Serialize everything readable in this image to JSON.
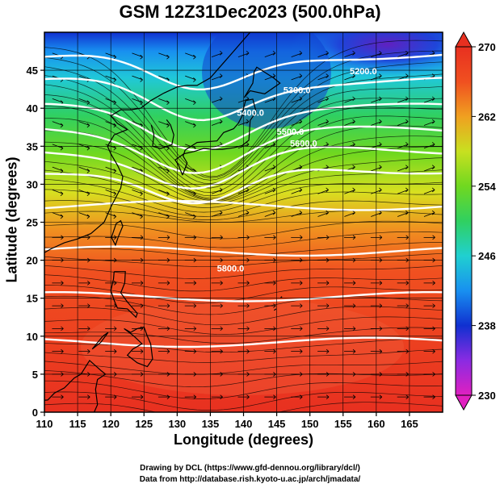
{
  "title": "GSM 12Z31Dec2023 (500.0hPa)",
  "xlabel": "Longitude (degrees)",
  "ylabel": "Latitude  (degrees)",
  "credits": {
    "line1": "Drawing by DCL (https://www.gfd-dennou.org/library/dcl/)",
    "line2": "Data from http://database.rish.kyoto-u.ac.jp/arch/jmadata/"
  },
  "chart_data": {
    "type": "heatmap",
    "x_range": [
      110,
      170
    ],
    "y_range": [
      0,
      50
    ],
    "x_ticks": [
      110,
      115,
      120,
      125,
      130,
      135,
      140,
      145,
      150,
      155,
      160,
      165
    ],
    "y_ticks": [
      0,
      5,
      10,
      15,
      20,
      25,
      30,
      35,
      40,
      45
    ],
    "grid": true,
    "colorbar": {
      "range": [
        230,
        270
      ],
      "labels": [
        230,
        238,
        246,
        254,
        262,
        270
      ],
      "position": "right",
      "colors": [
        "#e020c0",
        "#8a2be2",
        "#1030d0",
        "#1890f0",
        "#20d0d0",
        "#30d060",
        "#60d020",
        "#c0e020",
        "#f0d010",
        "#f09020",
        "#f05020",
        "#e83020"
      ]
    },
    "contour_labels": [
      {
        "text": "5200.0",
        "lon": 156,
        "lat": 44.5
      },
      {
        "text": "5300.0",
        "lon": 146,
        "lat": 42.0
      },
      {
        "text": "5400.0",
        "lon": 139,
        "lat": 39.0
      },
      {
        "text": "5500.0",
        "lon": 145,
        "lat": 36.5
      },
      {
        "text": "5600.0",
        "lon": 147,
        "lat": 35.0
      },
      {
        "text": "5800.0",
        "lon": 136,
        "lat": 18.5
      }
    ]
  }
}
